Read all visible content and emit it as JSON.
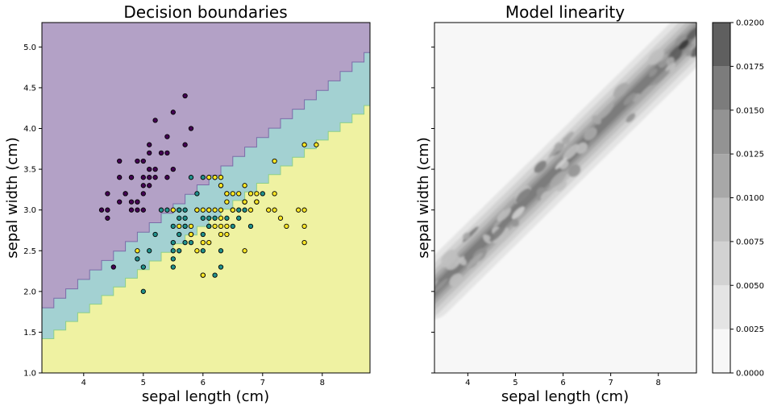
{
  "chart_data": [
    {
      "type": "scatter",
      "title": "Decision boundaries",
      "xlabel": "sepal length (cm)",
      "ylabel": "sepal width (cm)",
      "xlim": [
        3.3,
        8.8
      ],
      "ylim": [
        1.0,
        5.3
      ],
      "xticks": [
        "4",
        "5",
        "6",
        "7",
        "8"
      ],
      "yticks": [
        "1.0",
        "1.5",
        "2.0",
        "2.5",
        "3.0",
        "3.5",
        "4.0",
        "4.5",
        "5.0"
      ],
      "regions": [
        {
          "color": "#b3a1c6"
        },
        {
          "color": "#a3d1d2"
        },
        {
          "color": "#eff2a2"
        }
      ],
      "point_colors": [
        "#440154",
        "#21918c",
        "#fde725"
      ],
      "series": [
        {
          "values": [
            [
              5.1,
              3.5
            ],
            [
              4.9,
              3.0
            ],
            [
              4.7,
              3.2
            ],
            [
              4.6,
              3.1
            ],
            [
              5.0,
              3.6
            ],
            [
              5.4,
              3.9
            ],
            [
              4.6,
              3.4
            ],
            [
              5.0,
              3.4
            ],
            [
              4.4,
              2.9
            ],
            [
              4.9,
              3.1
            ],
            [
              5.4,
              3.7
            ],
            [
              4.8,
              3.4
            ],
            [
              4.8,
              3.0
            ],
            [
              4.3,
              3.0
            ],
            [
              5.8,
              4.0
            ],
            [
              5.7,
              4.4
            ],
            [
              5.1,
              3.8
            ],
            [
              5.7,
              3.8
            ],
            [
              5.2,
              4.1
            ],
            [
              5.5,
              4.2
            ],
            [
              5.0,
              3.2
            ],
            [
              4.4,
              3.2
            ],
            [
              4.5,
              2.3
            ],
            [
              5.3,
              3.7
            ],
            [
              5.2,
              3.5
            ],
            [
              5.0,
              3.3
            ],
            [
              4.9,
              3.6
            ],
            [
              5.5,
              3.5
            ],
            [
              5.1,
              3.4
            ],
            [
              4.8,
              3.1
            ],
            [
              5.0,
              3.0
            ],
            [
              4.4,
              3.0
            ],
            [
              5.4,
              3.4
            ],
            [
              5.2,
              3.4
            ],
            [
              4.7,
              3.2
            ],
            [
              5.1,
              3.7
            ],
            [
              4.6,
              3.6
            ],
            [
              5.1,
              3.3
            ],
            [
              4.8,
              3.4
            ],
            [
              4.9,
              3.1
            ]
          ]
        },
        {
          "values": [
            [
              7.0,
              3.2
            ],
            [
              6.4,
              3.2
            ],
            [
              6.9,
              3.1
            ],
            [
              5.5,
              2.3
            ],
            [
              6.5,
              2.8
            ],
            [
              5.7,
              2.8
            ],
            [
              6.3,
              3.3
            ],
            [
              4.9,
              2.4
            ],
            [
              6.6,
              2.9
            ],
            [
              5.2,
              2.7
            ],
            [
              5.0,
              2.0
            ],
            [
              5.9,
              3.0
            ],
            [
              6.0,
              2.2
            ],
            [
              6.1,
              2.9
            ],
            [
              5.6,
              2.9
            ],
            [
              6.7,
              3.1
            ],
            [
              5.6,
              3.0
            ],
            [
              5.8,
              2.7
            ],
            [
              6.2,
              2.2
            ],
            [
              5.6,
              2.5
            ],
            [
              5.9,
              3.2
            ],
            [
              6.1,
              2.8
            ],
            [
              6.3,
              2.5
            ],
            [
              6.1,
              2.8
            ],
            [
              6.4,
              2.9
            ],
            [
              6.6,
              3.0
            ],
            [
              6.8,
              2.8
            ],
            [
              6.7,
              3.0
            ],
            [
              6.0,
              2.9
            ],
            [
              5.7,
              2.6
            ],
            [
              5.5,
              2.4
            ],
            [
              5.8,
              2.7
            ],
            [
              6.0,
              2.7
            ],
            [
              5.4,
              3.0
            ],
            [
              6.0,
              3.4
            ],
            [
              6.7,
              3.1
            ],
            [
              6.3,
              2.3
            ],
            [
              5.6,
              3.0
            ],
            [
              5.5,
              2.5
            ],
            [
              5.5,
              2.6
            ],
            [
              6.1,
              3.0
            ],
            [
              5.8,
              2.6
            ],
            [
              5.0,
              2.3
            ],
            [
              5.6,
              2.7
            ],
            [
              5.7,
              3.0
            ],
            [
              5.7,
              2.9
            ],
            [
              6.2,
              2.9
            ],
            [
              5.1,
              2.5
            ],
            [
              5.7,
              2.8
            ],
            [
              5.3,
              3.0
            ],
            [
              6.0,
              2.5
            ],
            [
              5.5,
              2.8
            ],
            [
              5.8,
              3.4
            ],
            [
              6.2,
              3.4
            ]
          ]
        },
        {
          "values": [
            [
              6.3,
              3.3
            ],
            [
              7.1,
              3.0
            ],
            [
              6.3,
              2.9
            ],
            [
              6.5,
              3.0
            ],
            [
              7.6,
              3.0
            ],
            [
              4.9,
              2.5
            ],
            [
              7.3,
              2.9
            ],
            [
              6.7,
              2.5
            ],
            [
              7.2,
              3.6
            ],
            [
              6.5,
              3.2
            ],
            [
              6.4,
              2.7
            ],
            [
              6.8,
              3.0
            ],
            [
              5.8,
              2.8
            ],
            [
              6.4,
              3.2
            ],
            [
              7.7,
              3.8
            ],
            [
              7.7,
              2.6
            ],
            [
              6.0,
              2.2
            ],
            [
              6.9,
              3.2
            ],
            [
              5.6,
              2.8
            ],
            [
              7.7,
              2.8
            ],
            [
              6.3,
              2.7
            ],
            [
              6.7,
              3.3
            ],
            [
              7.2,
              3.2
            ],
            [
              6.2,
              2.8
            ],
            [
              6.1,
              3.0
            ],
            [
              6.4,
              2.8
            ],
            [
              7.2,
              3.0
            ],
            [
              7.4,
              2.8
            ],
            [
              7.9,
              3.8
            ],
            [
              6.3,
              2.8
            ],
            [
              6.1,
              2.6
            ],
            [
              7.7,
              3.0
            ],
            [
              6.3,
              3.4
            ],
            [
              6.4,
              3.1
            ],
            [
              6.0,
              3.0
            ],
            [
              6.9,
              3.1
            ],
            [
              6.7,
              3.1
            ],
            [
              6.9,
              3.1
            ],
            [
              5.8,
              2.7
            ],
            [
              6.8,
              3.2
            ],
            [
              6.5,
              3.0
            ],
            [
              6.2,
              3.4
            ],
            [
              5.9,
              3.0
            ],
            [
              6.1,
              3.4
            ],
            [
              5.5,
              3.0
            ],
            [
              6.3,
              3.0
            ],
            [
              6.6,
              3.2
            ],
            [
              6.2,
              3.0
            ],
            [
              5.9,
              2.5
            ],
            [
              6.0,
              2.6
            ]
          ]
        }
      ]
    },
    {
      "type": "heatmap",
      "title": "Model linearity",
      "xlabel": "sepal length (cm)",
      "ylabel": "sepal width (cm)",
      "xlim": [
        3.3,
        8.8
      ],
      "ylim": [
        1.0,
        5.3
      ],
      "xticks": [
        "4",
        "5",
        "6",
        "7",
        "8"
      ],
      "colorbar": {
        "ticks": [
          "0.0000",
          "0.0025",
          "0.0050",
          "0.0075",
          "0.0100",
          "0.0125",
          "0.0150",
          "0.0175",
          "0.0200"
        ],
        "levels": [
          0,
          0.0025,
          0.005,
          0.0075,
          0.01,
          0.0125,
          0.015,
          0.0175,
          0.02
        ],
        "colors": [
          "#f7f7f7",
          "#e4e4e4",
          "#d2d2d2",
          "#bfbfbf",
          "#a8a8a8",
          "#939393",
          "#7c7c7c",
          "#5f5f5f",
          "#3d3d3d"
        ]
      }
    }
  ]
}
